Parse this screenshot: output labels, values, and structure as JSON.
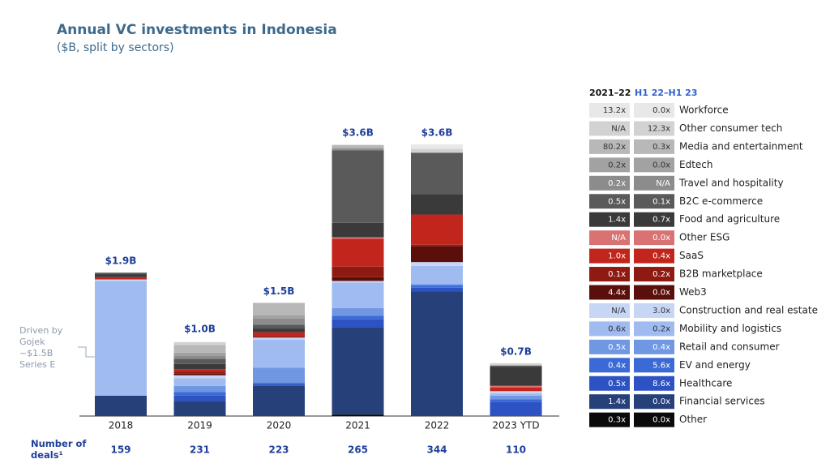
{
  "chart_data": {
    "type": "bar",
    "stacked": true,
    "title": "Annual VC investments in Indonesia",
    "subtitle": "($B, split by sectors)",
    "categories": [
      "2018",
      "2019",
      "2020",
      "2021",
      "2022",
      "2023 YTD"
    ],
    "ylim": [
      0,
      3.6
    ],
    "totals": {
      "values": [
        1.9,
        1.0,
        1.5,
        3.6,
        3.6,
        0.7
      ],
      "value_labels": [
        "$1.9B",
        "$1.0B",
        "$1.5B",
        "$3.6B",
        "$3.6B",
        "$0.7B"
      ]
    },
    "annotation": [
      "Driven by",
      "Gojek",
      "~$1.5B",
      "Series E"
    ],
    "deals": {
      "label": "Number of deals¹",
      "values": [
        159,
        231,
        223,
        265,
        344,
        110
      ]
    },
    "legend_headers": [
      "2021–22",
      "H1 22–H1 23"
    ],
    "series": [
      {
        "name": "Other",
        "color": "#0a0a0a",
        "values": [
          0,
          0,
          0,
          0.02,
          0,
          0
        ],
        "multipliers": [
          "0.3x",
          "0.0x"
        ]
      },
      {
        "name": "Financial services",
        "color": "#26407a",
        "values": [
          0.27,
          0.2,
          0.4,
          1.16,
          1.65,
          0
        ],
        "multipliers": [
          "1.4x",
          "0.0x"
        ]
      },
      {
        "name": "Healthcare",
        "color": "#2c52c4",
        "values": [
          0,
          0.07,
          0.02,
          0.1,
          0.05,
          0.19
        ],
        "multipliers": [
          "0.5x",
          "8.6x"
        ]
      },
      {
        "name": "EV and energy",
        "color": "#3b6ad6",
        "values": [
          0,
          0.05,
          0.02,
          0.05,
          0.03,
          0.03
        ],
        "multipliers": [
          "0.4x",
          "5.6x"
        ]
      },
      {
        "name": "Retail and consumer",
        "color": "#6f97e2",
        "values": [
          0,
          0.08,
          0.2,
          0.1,
          0.02,
          0.05
        ],
        "multipliers": [
          "0.5x",
          "0.4x"
        ]
      },
      {
        "name": "Mobility and logistics",
        "color": "#a0bbf0",
        "values": [
          1.52,
          0.1,
          0.37,
          0.34,
          0.24,
          0.03
        ],
        "multipliers": [
          "0.6x",
          "0.2x"
        ]
      },
      {
        "name": "Construction and real estate",
        "color": "#c8d6f6",
        "values": [
          0.02,
          0.04,
          0.03,
          0.02,
          0.05,
          0.03
        ],
        "multipliers": [
          "N/A",
          "3.0x"
        ]
      },
      {
        "name": "Web3",
        "color": "#5a0f0a",
        "values": [
          0,
          0.02,
          0,
          0.05,
          0.21,
          0
        ],
        "multipliers": [
          "4.4x",
          "0.0x"
        ]
      },
      {
        "name": "B2B marketplace",
        "color": "#8e1a12",
        "values": [
          0,
          0.03,
          0.02,
          0.14,
          0.02,
          0
        ],
        "multipliers": [
          "0.1x",
          "0.2x"
        ]
      },
      {
        "name": "SaaS",
        "color": "#c2251b",
        "values": [
          0.03,
          0.03,
          0.05,
          0.37,
          0.4,
          0.05
        ],
        "multipliers": [
          "1.0x",
          "0.4x"
        ]
      },
      {
        "name": "Other ESG",
        "color": "#d97272",
        "values": [
          0,
          0,
          0,
          0.02,
          0,
          0.02
        ],
        "multipliers": [
          "N/A",
          "0.0x"
        ]
      },
      {
        "name": "Food and agriculture",
        "color": "#3a3a3a",
        "values": [
          0.04,
          0.07,
          0.05,
          0.19,
          0.27,
          0.25
        ],
        "multipliers": [
          "1.4x",
          "0.7x"
        ]
      },
      {
        "name": "B2C e-commerce",
        "color": "#5a5a5a",
        "values": [
          0.02,
          0.07,
          0.05,
          0.96,
          0.55,
          0.02
        ],
        "multipliers": [
          "0.5x",
          "0.1x"
        ]
      },
      {
        "name": "Travel and hospitality",
        "color": "#8c8c8c",
        "values": [
          0,
          0.04,
          0.08,
          0.02,
          0,
          0
        ],
        "multipliers": [
          "0.2x",
          "N/A"
        ]
      },
      {
        "name": "Edtech",
        "color": "#a2a2a2",
        "values": [
          0,
          0.04,
          0.05,
          0.02,
          0,
          0
        ],
        "multipliers": [
          "0.2x",
          "0.0x"
        ]
      },
      {
        "name": "Media and entertainment",
        "color": "#b8b8b8",
        "values": [
          0,
          0.1,
          0.16,
          0.03,
          0,
          0
        ],
        "multipliers": [
          "80.2x",
          "0.3x"
        ]
      },
      {
        "name": "Other consumer tech",
        "color": "#d2d2d2",
        "values": [
          0,
          0.04,
          0,
          0,
          0.05,
          0.03
        ],
        "multipliers": [
          "N/A",
          "12.3x"
        ]
      },
      {
        "name": "Workforce",
        "color": "#e8e8e8",
        "values": [
          0,
          0,
          0,
          0.01,
          0.06,
          0
        ],
        "multipliers": [
          "13.2x",
          "0.0x"
        ]
      }
    ]
  }
}
